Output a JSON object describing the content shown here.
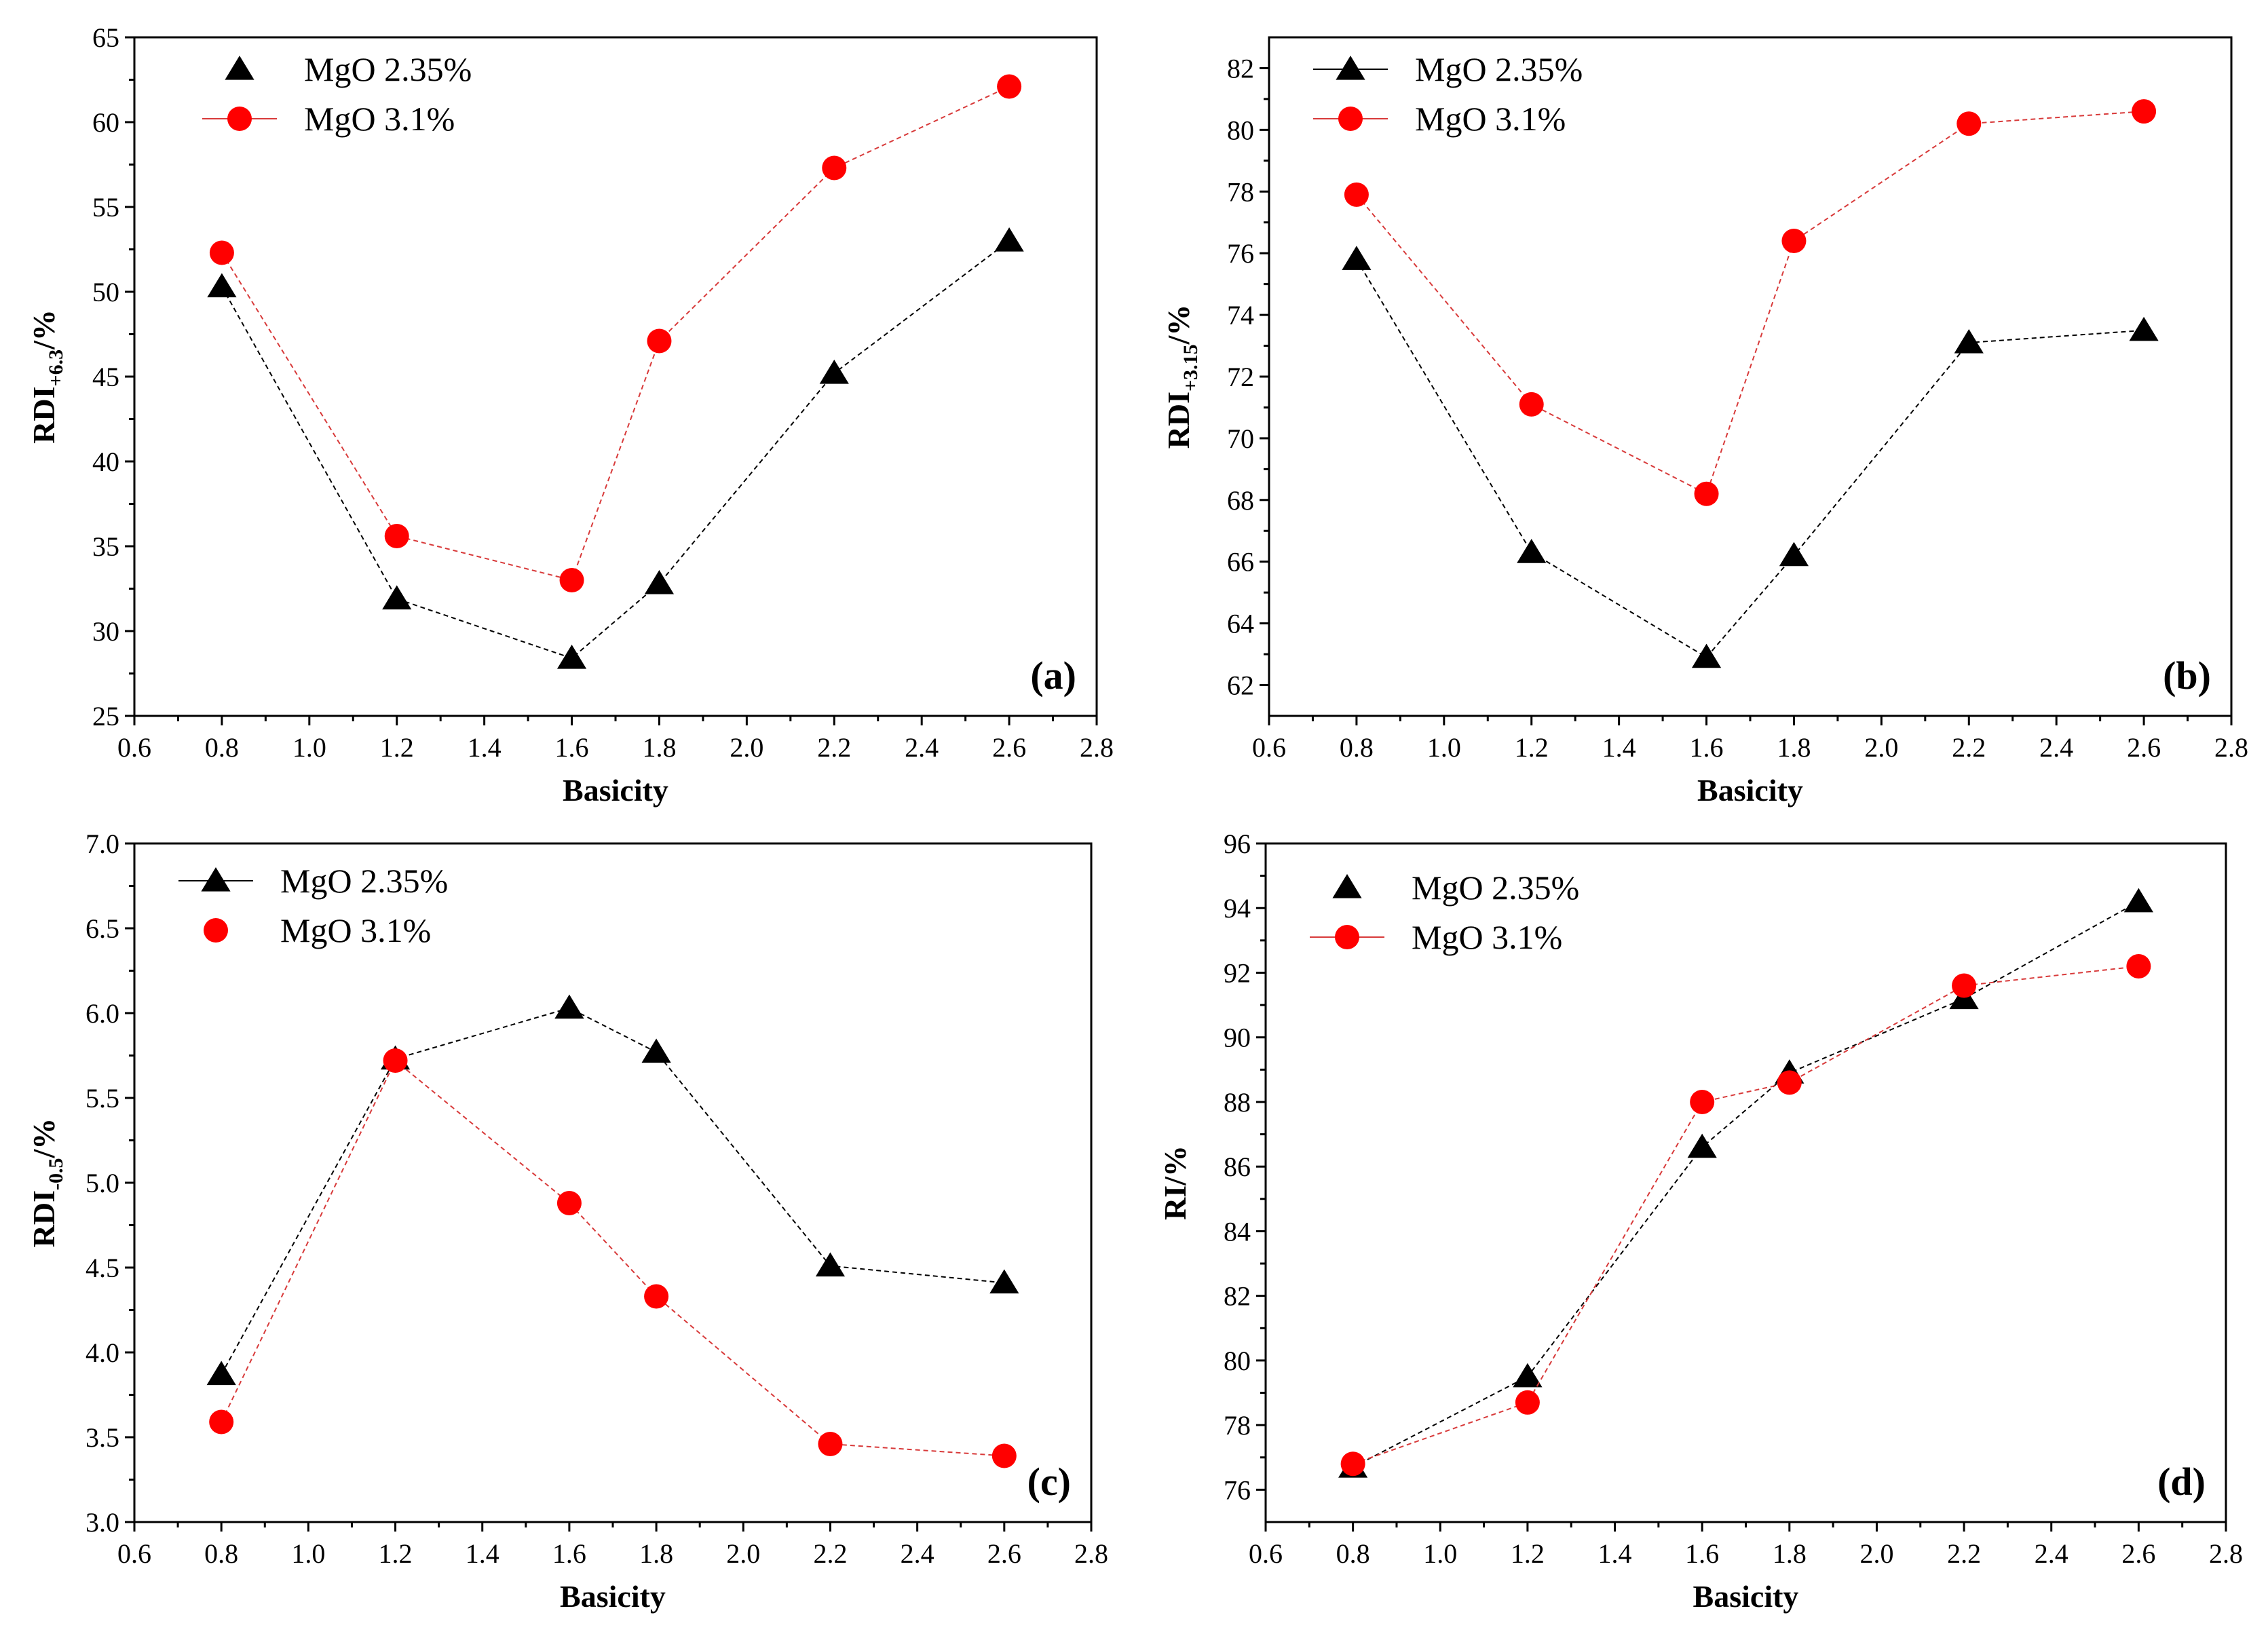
{
  "colors": {
    "series_black": "#000000",
    "series_red": "#ff0000",
    "series_red_line": "#d83a3a",
    "frame": "#000000",
    "background": "#ffffff"
  },
  "chart_data": [
    {
      "panel_label": "(a)",
      "type": "line",
      "xlabel": "Basicity",
      "ylabel": {
        "main": "RDI",
        "sub": "+6.3",
        "suffix": "/%"
      },
      "xlim": [
        0.6,
        2.8
      ],
      "ylim": [
        25,
        65
      ],
      "x_ticks": [
        "0.6",
        "0.8",
        "1.0",
        "1.2",
        "1.4",
        "1.6",
        "1.8",
        "2.0",
        "2.2",
        "2.4",
        "2.6",
        "2.8"
      ],
      "y_ticks": [
        "25",
        "30",
        "35",
        "40",
        "45",
        "50",
        "55",
        "60",
        "65"
      ],
      "legend_position": "top-left",
      "x": [
        0.8,
        1.2,
        1.6,
        1.8,
        2.2,
        2.6
      ],
      "series": [
        {
          "name": "MgO 2.35%",
          "marker": "triangle",
          "color": "#000000",
          "line_color": "#000000",
          "legend_line": false,
          "values": [
            50.3,
            31.9,
            28.4,
            32.8,
            45.2,
            53.0
          ]
        },
        {
          "name": "MgO 3.1%",
          "marker": "circle",
          "color": "#ff0000",
          "line_color": "#d83a3a",
          "legend_line": true,
          "values": [
            52.3,
            35.6,
            33.0,
            47.1,
            57.3,
            62.1
          ]
        }
      ]
    },
    {
      "panel_label": "(b)",
      "type": "line",
      "xlabel": "Basicity",
      "ylabel": {
        "main": "RDI",
        "sub": "+3.15",
        "suffix": "/%"
      },
      "xlim": [
        0.6,
        2.8
      ],
      "ylim": [
        61,
        83
      ],
      "x_ticks": [
        "0.6",
        "0.8",
        "1.0",
        "1.2",
        "1.4",
        "1.6",
        "1.8",
        "2.0",
        "2.2",
        "2.4",
        "2.6",
        "2.8"
      ],
      "y_ticks": [
        "62",
        "64",
        "66",
        "68",
        "70",
        "72",
        "74",
        "76",
        "78",
        "80",
        "82"
      ],
      "legend_position": "top-left",
      "x": [
        0.8,
        1.2,
        1.6,
        1.8,
        2.2,
        2.6
      ],
      "series": [
        {
          "name": "MgO 2.35%",
          "marker": "triangle",
          "color": "#000000",
          "line_color": "#000000",
          "legend_line": true,
          "values": [
            75.8,
            66.3,
            62.9,
            66.2,
            73.1,
            73.5
          ]
        },
        {
          "name": "MgO 3.1%",
          "marker": "circle",
          "color": "#ff0000",
          "line_color": "#d83a3a",
          "legend_line": true,
          "values": [
            77.9,
            71.1,
            68.2,
            76.4,
            80.2,
            80.6
          ]
        }
      ]
    },
    {
      "panel_label": "(c)",
      "type": "line",
      "xlabel": "Basicity",
      "ylabel": {
        "main": "RDI",
        "sub": "-0.5",
        "suffix": "/%"
      },
      "xlim": [
        0.6,
        2.8
      ],
      "ylim": [
        3.0,
        7.0
      ],
      "x_ticks": [
        "0.6",
        "0.8",
        "1.0",
        "1.2",
        "1.4",
        "1.6",
        "1.8",
        "2.0",
        "2.2",
        "2.4",
        "2.6",
        "2.8"
      ],
      "y_ticks": [
        "3.0",
        "3.5",
        "4.0",
        "4.5",
        "5.0",
        "5.5",
        "6.0",
        "6.5",
        "7.0"
      ],
      "legend_position": "top-left",
      "x": [
        0.8,
        1.2,
        1.6,
        1.8,
        2.2,
        2.6
      ],
      "series": [
        {
          "name": "MgO 2.35%",
          "marker": "triangle",
          "color": "#000000",
          "line_color": "#000000",
          "legend_line": true,
          "values": [
            3.87,
            5.73,
            6.03,
            5.77,
            4.51,
            4.41
          ]
        },
        {
          "name": "MgO 3.1%",
          "marker": "circle",
          "color": "#ff0000",
          "line_color": "#d83a3a",
          "legend_line": false,
          "values": [
            3.59,
            5.72,
            4.88,
            4.33,
            3.46,
            3.39
          ]
        }
      ]
    },
    {
      "panel_label": "(d)",
      "type": "line",
      "xlabel": "Basicity",
      "ylabel": {
        "main": "RI",
        "sub": "",
        "suffix": "/%"
      },
      "xlim": [
        0.6,
        2.8
      ],
      "ylim": [
        75,
        96
      ],
      "x_ticks": [
        "0.6",
        "0.8",
        "1.0",
        "1.2",
        "1.4",
        "1.6",
        "1.8",
        "2.0",
        "2.2",
        "2.4",
        "2.6",
        "2.8"
      ],
      "y_ticks": [
        "76",
        "78",
        "80",
        "82",
        "84",
        "86",
        "88",
        "90",
        "92",
        "94",
        "96"
      ],
      "legend_position": "top-left",
      "x": [
        0.8,
        1.2,
        1.6,
        1.8,
        2.2,
        2.6
      ],
      "series": [
        {
          "name": "MgO 2.35%",
          "marker": "triangle",
          "color": "#000000",
          "line_color": "#000000",
          "legend_line": false,
          "values": [
            76.7,
            79.5,
            86.6,
            88.9,
            91.2,
            94.2
          ]
        },
        {
          "name": "MgO 3.1%",
          "marker": "circle",
          "color": "#ff0000",
          "line_color": "#d83a3a",
          "legend_line": true,
          "values": [
            76.8,
            78.7,
            88.0,
            88.6,
            91.6,
            92.2
          ]
        }
      ]
    }
  ]
}
